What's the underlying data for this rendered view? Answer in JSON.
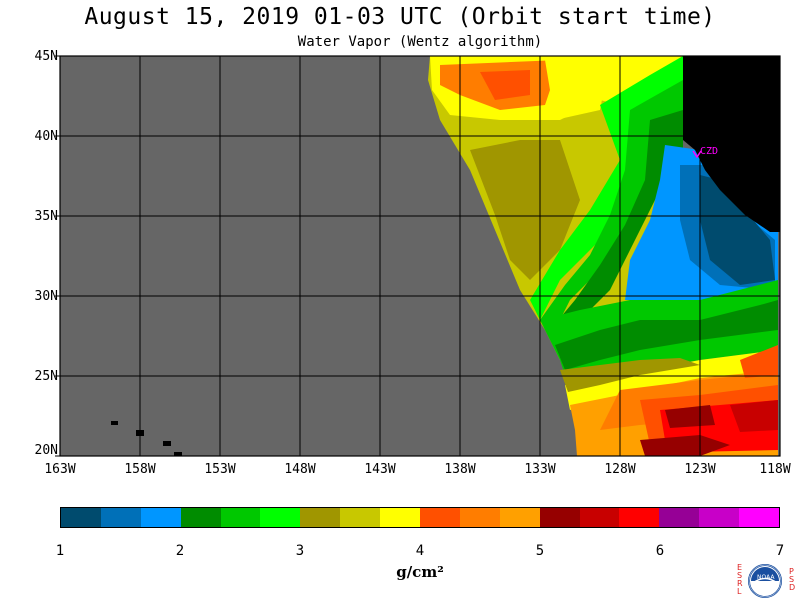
{
  "header": {
    "title": "August 15, 2019  01-03 UTC  (Orbit start time)",
    "subtitle": "Water Vapor (Wentz algorithm)"
  },
  "map": {
    "lon_range": [
      -163,
      -118
    ],
    "lat_range": [
      20,
      45
    ],
    "lat_labels": [
      "45N",
      "40N",
      "35N",
      "30N",
      "25N",
      "20N"
    ],
    "lon_labels": [
      "163W",
      "158W",
      "153W",
      "148W",
      "143W",
      "138W",
      "133W",
      "128W",
      "123W",
      "118W"
    ],
    "no_data_color": "#666666",
    "land_color": "#000000",
    "station": {
      "label": "CZD",
      "lon": -123.0,
      "lat": 38.6,
      "color": "#ff00ff"
    }
  },
  "colorbar": {
    "colors": [
      "#004b6e",
      "#0070b8",
      "#0096ff",
      "#008c00",
      "#00c800",
      "#00ff00",
      "#a09600",
      "#c8c800",
      "#ffff00",
      "#ff5000",
      "#ff7d00",
      "#ffa000",
      "#960000",
      "#c80000",
      "#ff0000",
      "#960096",
      "#c800c8",
      "#ff00ff"
    ],
    "tick_labels": [
      "1",
      "2",
      "3",
      "4",
      "5",
      "6",
      "7"
    ],
    "units": "g/cm²"
  },
  "logo": {
    "left_letters": "ESRL",
    "right_letters": "PSD",
    "center_text": "NOAA"
  }
}
